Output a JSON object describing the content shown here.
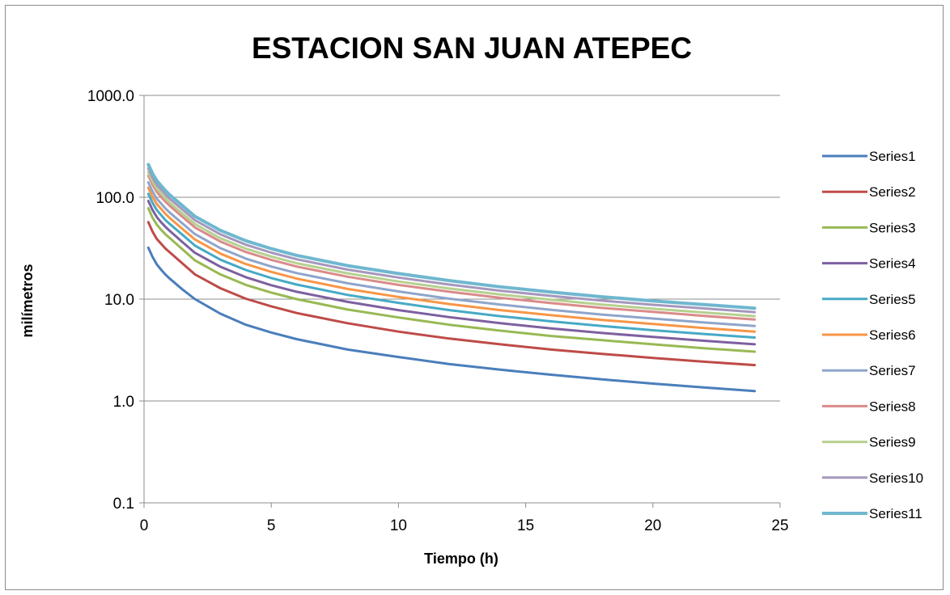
{
  "chart_data": {
    "type": "line",
    "title": "ESTACION SAN JUAN ATEPEC",
    "xlabel": "Tiempo (h)",
    "ylabel": "milímetros",
    "xlim": [
      0,
      25
    ],
    "ylim": [
      0.1,
      1000
    ],
    "yscale": "log",
    "grid": "horizontal",
    "legend_position": "right",
    "x_ticks": [
      "0",
      "5",
      "10",
      "15",
      "20",
      "25"
    ],
    "y_ticks": [
      "0.1",
      "1.0",
      "10.0",
      "100.0",
      "1000.0"
    ],
    "x": [
      0.167,
      0.333,
      0.5,
      0.667,
      0.833,
      1,
      1.5,
      2,
      3,
      4,
      5,
      6,
      8,
      10,
      12,
      14,
      16,
      18,
      20,
      22,
      24
    ],
    "series": [
      {
        "name": "Series1",
        "color": "#4a7ebb",
        "values": [
          32,
          26,
          22,
          19.5,
          17.5,
          16,
          12.5,
          10,
          7.2,
          5.6,
          4.7,
          4.05,
          3.2,
          2.7,
          2.3,
          2.03,
          1.81,
          1.63,
          1.48,
          1.36,
          1.25
        ]
      },
      {
        "name": "Series2",
        "color": "#be4b48",
        "values": [
          57,
          46,
          39,
          35,
          31.5,
          29,
          22.5,
          17.5,
          12.8,
          10.1,
          8.5,
          7.3,
          5.8,
          4.8,
          4.1,
          3.6,
          3.2,
          2.9,
          2.65,
          2.43,
          2.25
        ]
      },
      {
        "name": "Series3",
        "color": "#98b954",
        "values": [
          78,
          63,
          54,
          48,
          43.5,
          40,
          31,
          24,
          17.5,
          13.8,
          11.6,
          10,
          7.9,
          6.6,
          5.6,
          4.9,
          4.35,
          3.95,
          3.6,
          3.3,
          3.05
        ]
      },
      {
        "name": "Series4",
        "color": "#7d60a0",
        "values": [
          92,
          75,
          64,
          57,
          51.5,
          47,
          36.5,
          28.5,
          20.8,
          16.4,
          13.7,
          11.8,
          9.4,
          7.8,
          6.65,
          5.8,
          5.15,
          4.65,
          4.25,
          3.9,
          3.6
        ]
      },
      {
        "name": "Series5",
        "color": "#46aac5",
        "values": [
          108,
          88,
          75,
          67,
          60,
          55,
          43,
          33.5,
          24.4,
          19.3,
          16.1,
          13.9,
          11,
          9.2,
          7.8,
          6.8,
          6.05,
          5.45,
          4.95,
          4.55,
          4.2
        ]
      },
      {
        "name": "Series6",
        "color": "#f79646",
        "values": [
          124,
          101,
          86,
          77,
          69,
          63,
          49,
          38.5,
          28,
          22.1,
          18.5,
          15.9,
          12.6,
          10.5,
          8.95,
          7.8,
          6.95,
          6.25,
          5.7,
          5.2,
          4.8
        ]
      },
      {
        "name": "Series7",
        "color": "#8ea5cb",
        "values": [
          140,
          114,
          97,
          87,
          78,
          71,
          55.5,
          43.5,
          31.7,
          25,
          20.9,
          18,
          14.3,
          11.9,
          10.1,
          8.85,
          7.85,
          7.05,
          6.45,
          5.9,
          5.45
        ]
      },
      {
        "name": "Series8",
        "color": "#da8b89",
        "values": [
          163,
          133,
          113,
          101,
          91,
          83,
          64.5,
          50.5,
          36.8,
          29,
          24.3,
          20.9,
          16.6,
          13.8,
          11.8,
          10.3,
          9.15,
          8.2,
          7.5,
          6.85,
          6.3
        ]
      },
      {
        "name": "Series9",
        "color": "#b6d08f",
        "values": [
          176,
          143,
          122,
          109,
          98,
          89,
          69.5,
          54.5,
          39.6,
          31.3,
          26.2,
          22.5,
          17.9,
          14.9,
          12.7,
          11.1,
          9.85,
          8.85,
          8.05,
          7.4,
          6.8
        ]
      },
      {
        "name": "Series10",
        "color": "#a597bc",
        "values": [
          192,
          156,
          133,
          119,
          107,
          97,
          76,
          59.5,
          43.3,
          34.2,
          28.6,
          24.6,
          19.5,
          16.3,
          13.9,
          12.1,
          10.75,
          9.65,
          8.8,
          8.1,
          7.45
        ]
      },
      {
        "name": "Series11",
        "color": "#6fb7cf",
        "values": [
          210,
          171,
          146,
          130,
          117,
          106,
          83,
          65,
          47.3,
          37.4,
          31.3,
          26.9,
          21.3,
          17.8,
          15.2,
          13.2,
          11.75,
          10.55,
          9.6,
          8.85,
          8.15
        ]
      }
    ]
  }
}
